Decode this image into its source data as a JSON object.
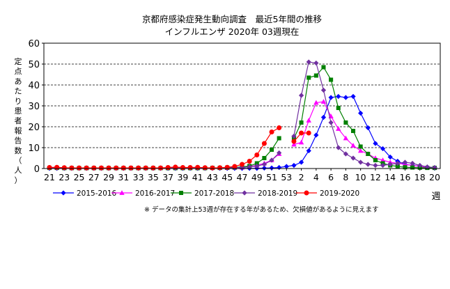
{
  "chart_data": {
    "type": "line",
    "title": "京都府感染症発生動向調査　最近5年間の推移",
    "subtitle": "インフルエンザ 2020年 03週現在",
    "ylabel": "定点あたり患者報告数（人）",
    "xlabel": "週",
    "ylim": [
      0,
      60
    ],
    "yticks": [
      0,
      10,
      20,
      30,
      40,
      50,
      60
    ],
    "grid": "horizontal dashed",
    "legend_position": "bottom",
    "weeks": [
      21,
      22,
      23,
      24,
      25,
      26,
      27,
      28,
      29,
      30,
      31,
      32,
      33,
      34,
      35,
      36,
      37,
      38,
      39,
      40,
      41,
      42,
      43,
      44,
      45,
      46,
      47,
      48,
      49,
      50,
      51,
      52,
      53,
      1,
      2,
      3,
      4,
      5,
      6,
      7,
      8,
      9,
      10,
      11,
      12,
      13,
      14,
      15,
      16,
      17,
      18,
      19,
      20
    ],
    "xtick_labels": [
      "21",
      "23",
      "25",
      "27",
      "29",
      "31",
      "33",
      "35",
      "37",
      "39",
      "41",
      "43",
      "45",
      "47",
      "49",
      "51",
      "53",
      "2",
      "4",
      "6",
      "8",
      "10",
      "12",
      "14",
      "16",
      "18",
      "20"
    ],
    "series": [
      {
        "name": "2015-2016",
        "color": "#0000ff",
        "marker": "diamond",
        "values": [
          0.1,
          0.1,
          0.1,
          0.1,
          0.1,
          0.1,
          0.1,
          0.1,
          0.1,
          0.1,
          0.1,
          0.1,
          0.1,
          0.1,
          0.1,
          0.1,
          0.1,
          0.1,
          0.1,
          0.1,
          0.1,
          0.1,
          0.1,
          0.1,
          0.1,
          0.1,
          0.1,
          0.1,
          0.1,
          0.2,
          0.3,
          0.5,
          1,
          1.5,
          3,
          8.5,
          16,
          24.5,
          34,
          34.5,
          34,
          34.5,
          26.5,
          19.5,
          12,
          9.5,
          5.5,
          3.5,
          2,
          1.5,
          1,
          0.5,
          0.3
        ]
      },
      {
        "name": "2016-2017",
        "color": "#ff00ff",
        "marker": "triangle",
        "values": [
          0.5,
          0.5,
          0.3,
          0.3,
          0.3,
          0.3,
          0.3,
          0.3,
          0.3,
          0.3,
          0.3,
          0.3,
          0.3,
          0.3,
          0.3,
          0.3,
          0.3,
          0.3,
          0.3,
          0.3,
          0.3,
          0.3,
          0.3,
          0.3,
          0.3,
          0.4,
          0.5,
          1,
          1.5,
          2.5,
          4,
          7,
          null,
          11.5,
          12.5,
          23,
          31.5,
          32,
          25,
          19,
          14.5,
          11,
          8.5,
          7,
          5,
          4,
          3,
          2.5,
          2,
          1.5,
          1,
          0.5,
          0.3
        ]
      },
      {
        "name": "2017-2018",
        "color": "#008000",
        "marker": "square",
        "values": [
          0.3,
          0.3,
          0.2,
          0.2,
          0.2,
          0.2,
          0.2,
          0.2,
          0.2,
          0.2,
          0.2,
          0.2,
          0.2,
          0.2,
          0.2,
          0.2,
          0.2,
          0.2,
          0.2,
          0.2,
          0.2,
          0.2,
          0.3,
          0.3,
          0.4,
          0.5,
          0.8,
          1.2,
          2.5,
          5,
          9,
          14.5,
          null,
          14.5,
          22,
          43.5,
          44.5,
          48.5,
          42.5,
          29,
          22,
          18,
          10.5,
          7,
          4,
          2.5,
          1.5,
          1,
          0.6,
          0.5,
          0.4,
          0.3,
          0.3
        ]
      },
      {
        "name": "2018-2019",
        "color": "#7030a0",
        "marker": "diamond",
        "values": [
          0.3,
          0.2,
          0.2,
          0.2,
          0.2,
          0.2,
          0.2,
          0.2,
          0.2,
          0.2,
          0.2,
          0.2,
          0.2,
          0.2,
          0.2,
          0.2,
          0.2,
          0.2,
          0.2,
          0.2,
          0.2,
          0.2,
          0.2,
          0.3,
          0.3,
          0.4,
          0.5,
          0.8,
          1.2,
          2,
          4,
          7.5,
          null,
          15.5,
          35,
          51,
          50.5,
          37.5,
          22,
          10,
          7,
          5,
          3,
          2,
          1.5,
          1.5,
          2,
          2.5,
          3,
          2.5,
          1.5,
          0.8,
          0.5
        ]
      },
      {
        "name": "2019-2020",
        "color": "#ff0000",
        "marker": "circle",
        "values": [
          0.5,
          0.6,
          0.4,
          0.3,
          0.3,
          0.3,
          0.3,
          0.3,
          0.3,
          0.3,
          0.3,
          0.3,
          0.3,
          0.3,
          0.3,
          0.3,
          0.5,
          0.7,
          0.5,
          0.5,
          0.6,
          0.4,
          0.3,
          0.4,
          0.6,
          1,
          2,
          3.5,
          6.5,
          12,
          17.5,
          19.5,
          null,
          13,
          17,
          17,
          null,
          null,
          null,
          null,
          null,
          null,
          null,
          null,
          null,
          null,
          null,
          null,
          null,
          null,
          null,
          null,
          null
        ]
      }
    ]
  },
  "note": "※ データの集計上53週が存在する年があるため、欠損値があるように見えます"
}
